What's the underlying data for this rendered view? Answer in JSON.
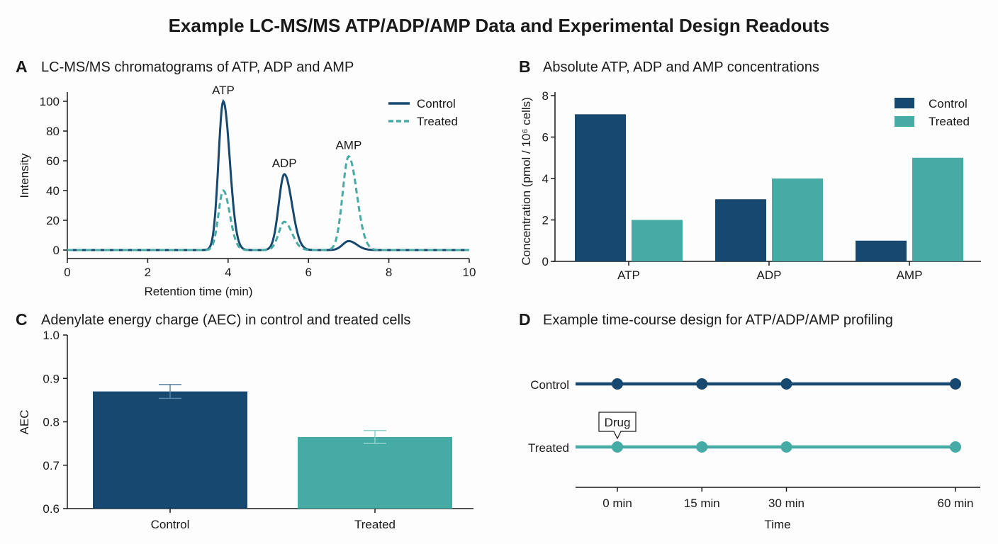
{
  "title": "Example LC-MS/MS ATP/ADP/AMP Data and Experimental Design Readouts",
  "colors": {
    "control": "#17486f",
    "treated": "#46aaa5"
  },
  "chart_data": [
    {
      "panel": "A",
      "type": "line",
      "title": "LC-MS/MS chromatograms of ATP, ADP and AMP",
      "xlabel": "Retention time (min)",
      "ylabel": "Intensity",
      "xlim": [
        0,
        10
      ],
      "ylim": [
        0,
        100
      ],
      "xticks": [
        "0",
        "2",
        "4",
        "6",
        "8",
        "10"
      ],
      "yticks": [
        "0",
        "20",
        "40",
        "60",
        "80",
        "100"
      ],
      "legend": "top-right",
      "peak_labels": [
        {
          "text": "ATP",
          "x": 3.88
        },
        {
          "text": "ADP",
          "x": 5.4
        },
        {
          "text": "AMP",
          "x": 7.0
        }
      ],
      "series": [
        {
          "name": "Control",
          "style": "solid",
          "peaks": [
            {
              "rt": 3.88,
              "height": 100
            },
            {
              "rt": 5.4,
              "height": 51
            },
            {
              "rt": 7.0,
              "height": 6
            }
          ]
        },
        {
          "name": "Treated",
          "style": "dashed",
          "peaks": [
            {
              "rt": 3.88,
              "height": 40
            },
            {
              "rt": 5.4,
              "height": 19
            },
            {
              "rt": 7.0,
              "height": 63
            }
          ]
        }
      ]
    },
    {
      "panel": "B",
      "type": "bar",
      "title": "Absolute ATP, ADP and AMP concentrations",
      "xlabel": "",
      "ylabel": "Concentration (pmol / 10⁶ cells)",
      "ylim": [
        0,
        8
      ],
      "yticks": [
        "0",
        "2",
        "4",
        "6",
        "8"
      ],
      "categories": [
        "ATP",
        "ADP",
        "AMP"
      ],
      "legend": "top-right",
      "series": [
        {
          "name": "Control",
          "values": [
            7.1,
            3.0,
            1.0
          ]
        },
        {
          "name": "Treated",
          "values": [
            2.0,
            4.0,
            5.0
          ]
        }
      ]
    },
    {
      "panel": "C",
      "type": "bar",
      "title": "Adenylate energy charge (AEC) in control and treated cells",
      "xlabel": "",
      "ylabel": "AEC",
      "ylim": [
        0.6,
        1.0
      ],
      "yticks": [
        "0.6",
        "0.7",
        "0.8",
        "0.9",
        "1.0"
      ],
      "categories": [
        "Control",
        "Treated"
      ],
      "values": [
        0.87,
        0.765
      ],
      "errors": [
        0.016,
        0.015
      ]
    },
    {
      "panel": "D",
      "type": "timeline",
      "title": "Example time-course design for ATP/ADP/AMP profiling",
      "xlabel": "Time",
      "timepoints": [
        0,
        15,
        30,
        60
      ],
      "tick_labels": [
        "0 min",
        "15 min",
        "30 min",
        "60 min"
      ],
      "groups": [
        "Control",
        "Treated"
      ],
      "annotation": {
        "text": "Drug",
        "group": "Treated",
        "time": 0
      }
    }
  ]
}
